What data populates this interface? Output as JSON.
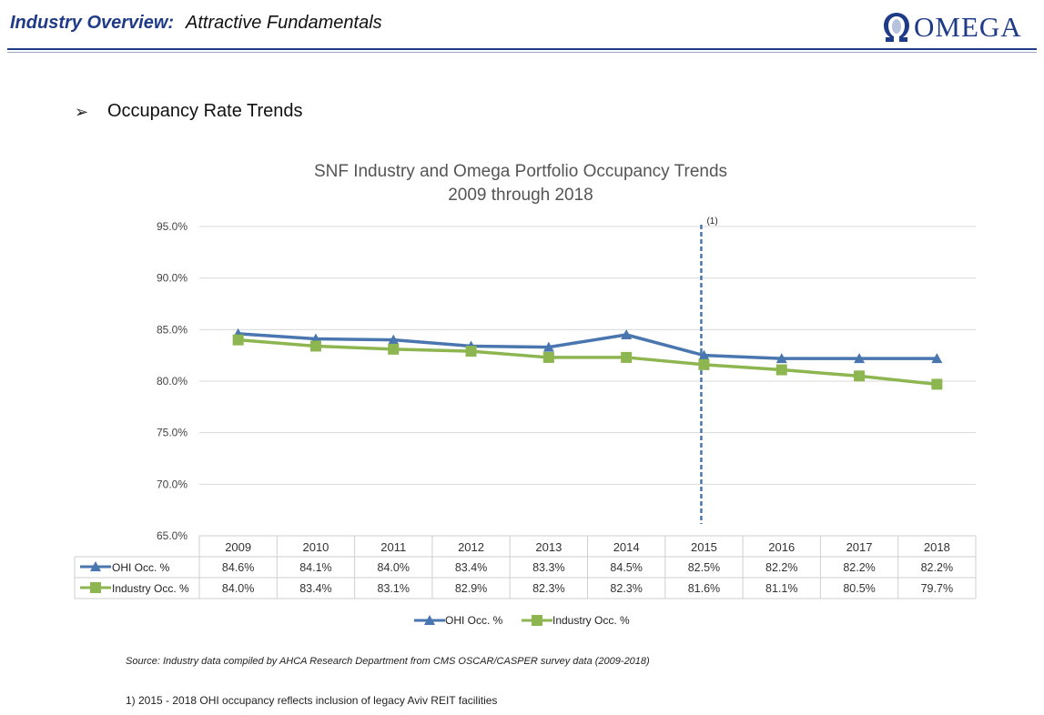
{
  "header": {
    "title_bold": "Industry Overview:",
    "title_sub": "Attractive Fundamentals",
    "logo_text": "OMEGA"
  },
  "bullet": {
    "text": "Occupancy Rate Trends"
  },
  "chart_data": {
    "type": "line",
    "title": "SNF Industry and Omega Portfolio Occupancy Trends",
    "subtitle": "2009 through 2018",
    "categories": [
      "2009",
      "2010",
      "2011",
      "2012",
      "2013",
      "2014",
      "2015",
      "2016",
      "2017",
      "2018"
    ],
    "ylim": [
      65.0,
      95.0
    ],
    "yticks": [
      "95.0%",
      "90.0%",
      "85.0%",
      "80.0%",
      "75.0%",
      "70.0%",
      "65.0%"
    ],
    "ytick_values": [
      95,
      90,
      85,
      80,
      75,
      70,
      65
    ],
    "grid": true,
    "legend_position": "bottom",
    "series": [
      {
        "name": "OHI Occ. %",
        "color": "#4a76b0",
        "marker": "triangle",
        "values": [
          84.6,
          84.1,
          84.0,
          83.4,
          83.3,
          84.5,
          82.5,
          82.2,
          82.2,
          82.2
        ],
        "labels": [
          "84.6%",
          "84.1%",
          "84.0%",
          "83.4%",
          "83.3%",
          "84.5%",
          "82.5%",
          "82.2%",
          "82.2%",
          "82.2%"
        ]
      },
      {
        "name": "Industry Occ. %",
        "color": "#8db650",
        "marker": "square",
        "values": [
          84.0,
          83.4,
          83.1,
          82.9,
          82.3,
          82.3,
          81.6,
          81.1,
          80.5,
          79.7
        ],
        "labels": [
          "84.0%",
          "83.4%",
          "83.1%",
          "82.9%",
          "82.3%",
          "82.3%",
          "81.6%",
          "81.1%",
          "80.5%",
          "79.7%"
        ]
      }
    ],
    "annotation": {
      "text": "(1)",
      "x_category": "2015",
      "color": "#4a76b0",
      "style": "dashed-vertical-line"
    }
  },
  "source": "Source:  Industry data compiled by AHCA Research Department from CMS OSCAR/CASPER survey data (2009-2018)",
  "footnote": "1)  2015 - 2018 OHI occupancy reflects inclusion of legacy Aviv REIT facilities"
}
